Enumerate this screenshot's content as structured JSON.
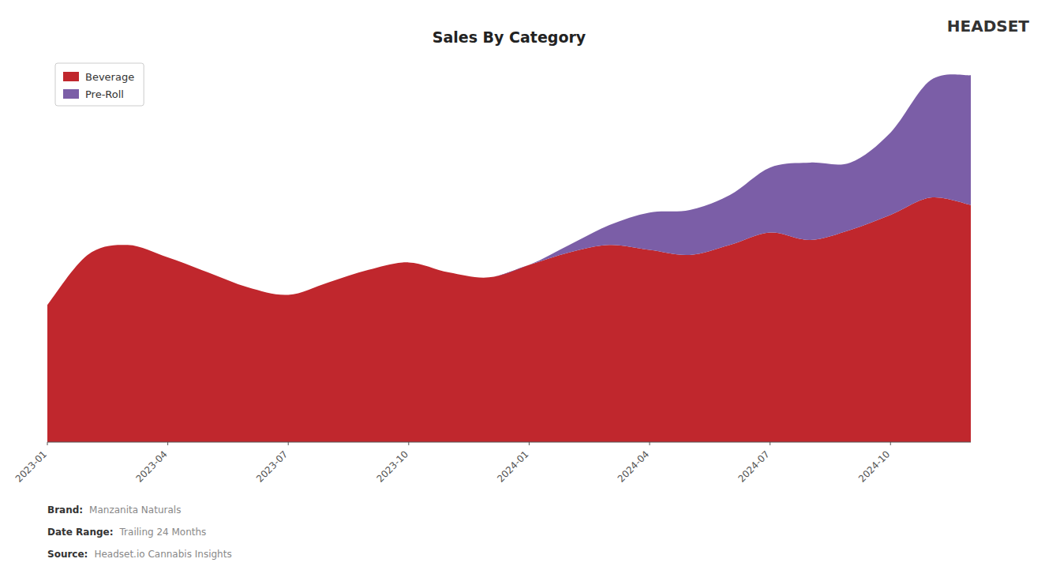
{
  "chart_data": {
    "type": "area",
    "title": "Sales By Category",
    "categories": [
      "2023-01",
      null,
      null,
      "2023-04",
      null,
      null,
      "2023-07",
      null,
      null,
      "2023-10",
      null,
      null,
      "2024-01",
      null,
      null,
      "2024-04",
      null,
      null,
      "2024-07",
      null,
      null,
      "2024-10",
      null,
      null
    ],
    "series": [
      {
        "name": "Beverage",
        "color": "#C0272D",
        "values": [
          550,
          750,
          790,
          740,
          680,
          620,
          590,
          640,
          690,
          720,
          680,
          660,
          710,
          760,
          790,
          770,
          750,
          790,
          840,
          810,
          850,
          910,
          980,
          950
        ]
      },
      {
        "name": "Pre-Roll",
        "color": "#7B5EA7",
        "values": [
          0,
          0,
          0,
          0,
          0,
          0,
          0,
          0,
          0,
          0,
          0,
          0,
          0,
          30,
          80,
          150,
          180,
          200,
          260,
          310,
          270,
          330,
          470,
          520
        ]
      }
    ],
    "stacked": true,
    "ylim": [
      0,
      1550
    ],
    "tick_labels": "x",
    "legend": "upper left",
    "grid": false,
    "annotations": [
      "Brand:",
      "Manzanita Naturals",
      "Date Range:",
      "Trailing 24 Months",
      "Source:",
      "Headset.io Cannabis Insights",
      "HEADSET"
    ]
  }
}
